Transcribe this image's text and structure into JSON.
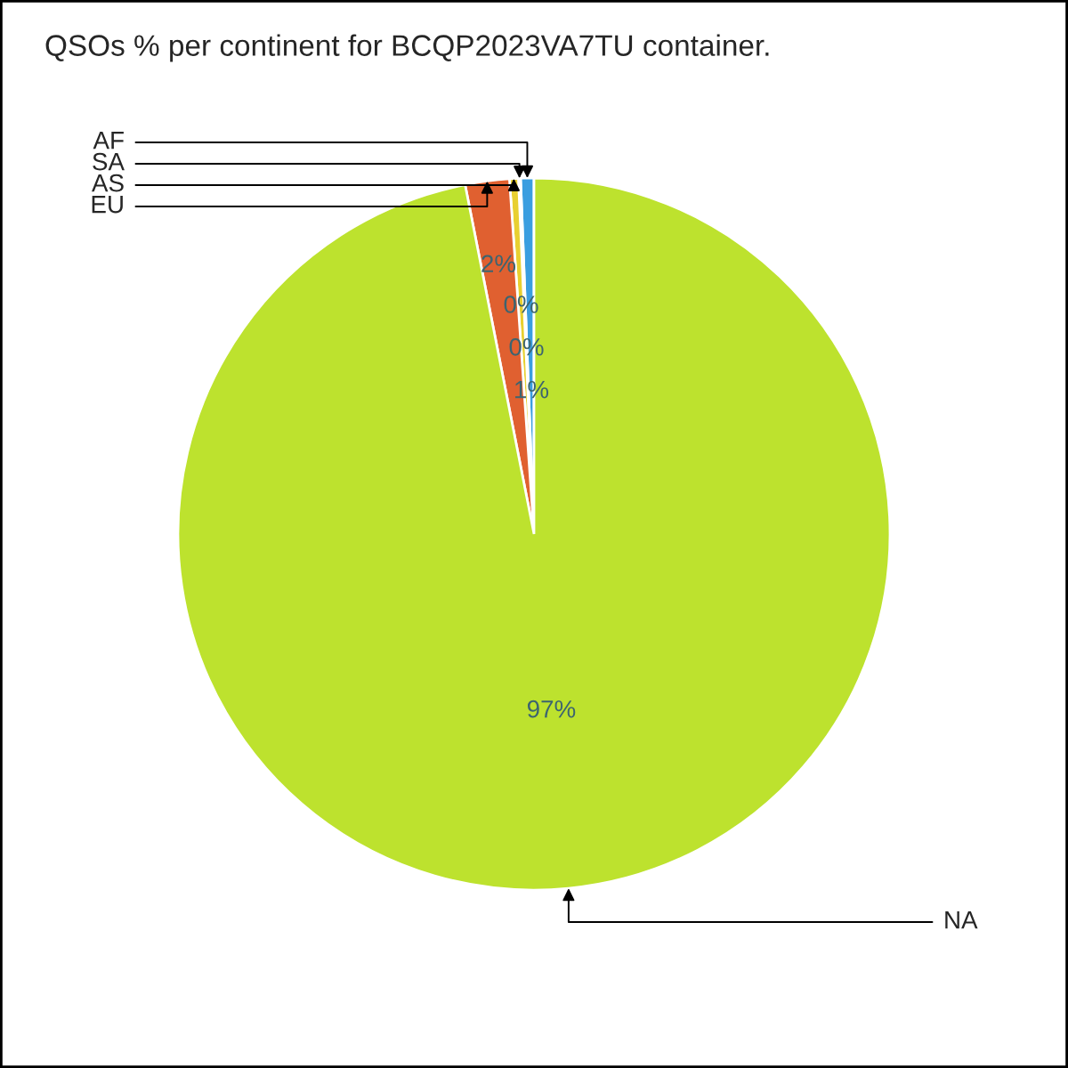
{
  "chart_data": {
    "type": "pie",
    "title": "QSOs % per continent for BCQP2023VA7TU container.",
    "categories": [
      "AF",
      "SA",
      "AS",
      "EU",
      "NA"
    ],
    "values": [
      0.6,
      0.1,
      0.4,
      2.0,
      96.9
    ],
    "value_labels": [
      "1%",
      "0%",
      "0%",
      "2%",
      "97%"
    ],
    "colors": [
      "#3a9ee0",
      "#d8a8c8",
      "#e8d030",
      "#e06030",
      "#bde22e"
    ]
  }
}
